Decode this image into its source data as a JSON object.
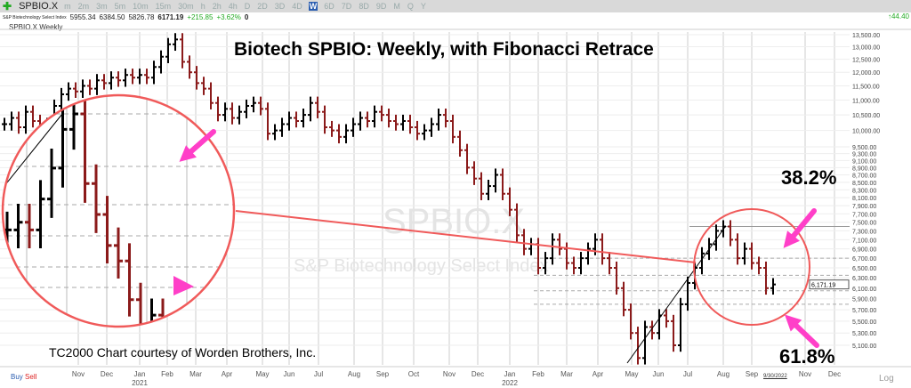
{
  "toolbar": {
    "symbol": "SPBIO.X",
    "timeframes": [
      "m",
      "2m",
      "3m",
      "5m",
      "10m",
      "15m",
      "30m",
      "h",
      "2h",
      "4h",
      "D",
      "2D",
      "3D",
      "4D",
      "W",
      "6D",
      "7D",
      "8D",
      "9D",
      "M",
      "Q",
      "Y"
    ],
    "active": "W",
    "right_change": "44.40"
  },
  "info": {
    "name": "S&P Biotechnology Select Index",
    "open": "5955.34",
    "high": "6384.50",
    "low": "5826.78",
    "last": "6171.19",
    "change": "+215.85",
    "pct": "+3.62%",
    "vol": "0"
  },
  "chart_header": "SPBIO.X Weekly",
  "annotations": {
    "title": "Biotech SPBIO:  Weekly, with Fibonacci Retrace",
    "credit": "TC2000 Chart courtesy of Worden Brothers, Inc.",
    "fib_382": "38.2%",
    "fib_618": "61.8%",
    "watermark_symbol": "SPBIO.X",
    "watermark_name": "S&P Biotechnology Select Index"
  },
  "footer": {
    "buy": "Buy",
    "sell": "Sell",
    "log": "Log",
    "current_date": "9/30/2022"
  },
  "colors": {
    "up": "#000000",
    "down": "#8b1a1a",
    "circle": "#f05a5a",
    "arrow": "#ff3fc8",
    "trendline": "#f05a5a"
  },
  "chart_data": {
    "type": "ohlc",
    "title": "Biotech SPBIO:  Weekly, with Fibonacci Retrace",
    "x_start": "2020-09",
    "frequency": "weekly",
    "closes": [
      10200,
      10400,
      10100,
      10600,
      10300,
      10000,
      10200,
      10800,
      11200,
      11400,
      11300,
      11500,
      11400,
      11700,
      11600,
      11800,
      11700,
      11900,
      11800,
      11900,
      11800,
      12200,
      12600,
      13100,
      13300,
      12400,
      12000,
      11600,
      11400,
      10900,
      10500,
      10700,
      10400,
      10600,
      10800,
      10900,
      10700,
      9900,
      10000,
      10200,
      10400,
      10300,
      10500,
      10900,
      10600,
      10100,
      10000,
      9800,
      10000,
      10200,
      10400,
      10300,
      10600,
      10500,
      10300,
      10200,
      10300,
      10100,
      9900,
      10000,
      10200,
      10500,
      10300,
      9800,
      9400,
      8900,
      8600,
      8200,
      8400,
      8700,
      8200,
      7800,
      7200,
      6900,
      7000,
      6500,
      6700,
      7100,
      6900,
      6600,
      6500,
      6700,
      6900,
      7100,
      6700,
      6500,
      6100,
      5700,
      5300,
      4900,
      5400,
      5300,
      5600,
      5500,
      5100,
      5800,
      6200,
      6500,
      6800,
      7000,
      7300,
      7400,
      7100,
      6700,
      6900,
      6600,
      6500,
      6100,
      6171.19
    ],
    "last_price_label": "6,171.19",
    "y_scale": "log",
    "y_ticks": [
      "13,500.00",
      "13,000.00",
      "12,500.00",
      "12,000.00",
      "11,500.00",
      "11,000.00",
      "10,500.00",
      "10,000.00",
      "9,500.00",
      "9,300.00",
      "9,100.00",
      "8,900.00",
      "8,700.00",
      "8,500.00",
      "8,300.00",
      "8,100.00",
      "7,900.00",
      "7,700.00",
      "7,500.00",
      "7,300.00",
      "7,100.00",
      "6,900.00",
      "6,700.00",
      "6,500.00",
      "6,300.00",
      "6,100.00",
      "5,900.00",
      "5,700.00",
      "5,500.00",
      "5,300.00",
      "5,100.00"
    ],
    "x_ticks": [
      {
        "m": "Nov"
      },
      {
        "m": "Dec"
      },
      {
        "m": "Jan",
        "y": "2021"
      },
      {
        "m": "Feb"
      },
      {
        "m": "Mar"
      },
      {
        "m": "Apr"
      },
      {
        "m": "May"
      },
      {
        "m": "Jun"
      },
      {
        "m": "Jul"
      },
      {
        "m": "Aug"
      },
      {
        "m": "Sep"
      },
      {
        "m": "Oct"
      },
      {
        "m": "Nov"
      },
      {
        "m": "Dec"
      },
      {
        "m": "Jan",
        "y": "2022"
      },
      {
        "m": "Feb"
      },
      {
        "m": "Mar"
      },
      {
        "m": "Apr"
      },
      {
        "m": "May"
      },
      {
        "m": "Jun"
      },
      {
        "m": "Jul"
      },
      {
        "m": "Aug"
      },
      {
        "m": "Sep"
      },
      {
        "m": "Nov"
      },
      {
        "m": "Dec"
      }
    ],
    "fib_levels": [
      6700,
      6350,
      6050,
      5800
    ]
  }
}
